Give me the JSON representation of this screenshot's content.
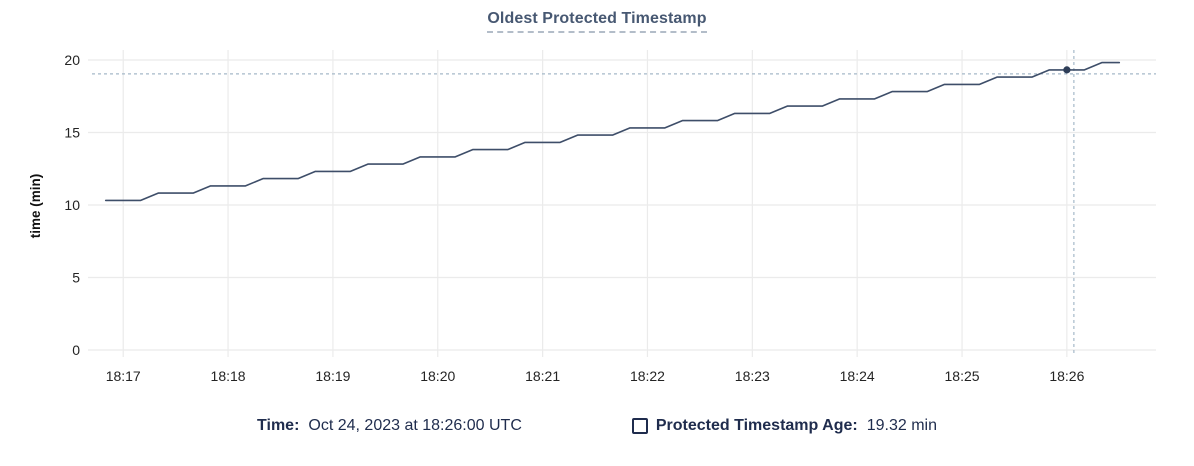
{
  "title": "Oldest Protected Timestamp",
  "colors": {
    "title": "#475872",
    "title_underline": "#b3bdc9",
    "line": "#3e4e69",
    "dot": "#2e3e58",
    "grid": "#ebebeb",
    "crosshair": "#a6b9c9",
    "tick_label": "#242424",
    "axis_label": "#111111",
    "legend_text": "#1f2c4d"
  },
  "chart_data": {
    "type": "line",
    "title": "Oldest Protected Timestamp",
    "xlabel": "",
    "ylabel": "time (min)",
    "ylim": [
      0,
      20
    ],
    "yticks": [
      0,
      5,
      10,
      15,
      20
    ],
    "xticks": [
      "18:17",
      "18:18",
      "18:19",
      "18:20",
      "18:21",
      "18:22",
      "18:23",
      "18:24",
      "18:25",
      "18:26"
    ],
    "x_domain": [
      "18:16:45",
      "18:26:51"
    ],
    "grid": true,
    "legend_position": "bottom",
    "series": [
      {
        "name": "Protected Timestamp Age",
        "unit": "min",
        "points": [
          [
            "18:16:50",
            10.32
          ],
          [
            "18:17:00",
            10.32
          ],
          [
            "18:17:10",
            10.32
          ],
          [
            "18:17:20",
            10.82
          ],
          [
            "18:17:30",
            10.82
          ],
          [
            "18:17:40",
            10.82
          ],
          [
            "18:17:50",
            11.32
          ],
          [
            "18:18:00",
            11.32
          ],
          [
            "18:18:10",
            11.32
          ],
          [
            "18:18:20",
            11.82
          ],
          [
            "18:18:30",
            11.82
          ],
          [
            "18:18:40",
            11.82
          ],
          [
            "18:18:50",
            12.32
          ],
          [
            "18:19:00",
            12.32
          ],
          [
            "18:19:10",
            12.32
          ],
          [
            "18:19:20",
            12.82
          ],
          [
            "18:19:30",
            12.82
          ],
          [
            "18:19:40",
            12.82
          ],
          [
            "18:19:50",
            13.32
          ],
          [
            "18:20:00",
            13.32
          ],
          [
            "18:20:10",
            13.32
          ],
          [
            "18:20:20",
            13.82
          ],
          [
            "18:20:30",
            13.82
          ],
          [
            "18:20:40",
            13.82
          ],
          [
            "18:20:50",
            14.32
          ],
          [
            "18:21:00",
            14.32
          ],
          [
            "18:21:10",
            14.32
          ],
          [
            "18:21:20",
            14.82
          ],
          [
            "18:21:30",
            14.82
          ],
          [
            "18:21:40",
            14.82
          ],
          [
            "18:21:50",
            15.32
          ],
          [
            "18:22:00",
            15.32
          ],
          [
            "18:22:10",
            15.32
          ],
          [
            "18:22:20",
            15.82
          ],
          [
            "18:22:30",
            15.82
          ],
          [
            "18:22:40",
            15.82
          ],
          [
            "18:22:50",
            16.32
          ],
          [
            "18:23:00",
            16.32
          ],
          [
            "18:23:10",
            16.32
          ],
          [
            "18:23:20",
            16.82
          ],
          [
            "18:23:30",
            16.82
          ],
          [
            "18:23:40",
            16.82
          ],
          [
            "18:23:50",
            17.32
          ],
          [
            "18:24:00",
            17.32
          ],
          [
            "18:24:10",
            17.32
          ],
          [
            "18:24:20",
            17.82
          ],
          [
            "18:24:30",
            17.82
          ],
          [
            "18:24:40",
            17.82
          ],
          [
            "18:24:50",
            18.32
          ],
          [
            "18:25:00",
            18.32
          ],
          [
            "18:25:10",
            18.32
          ],
          [
            "18:25:20",
            18.82
          ],
          [
            "18:25:30",
            18.82
          ],
          [
            "18:25:40",
            18.82
          ],
          [
            "18:25:50",
            19.32
          ],
          [
            "18:26:00",
            19.32
          ],
          [
            "18:26:10",
            19.32
          ],
          [
            "18:26:20",
            19.82
          ],
          [
            "18:26:30",
            19.82
          ]
        ]
      }
    ],
    "highlight": {
      "time": "18:26:00",
      "value": 19.32
    }
  },
  "legend": {
    "time_label": "Time:",
    "time_value": "Oct 24, 2023 at 18:26:00 UTC",
    "series_label": "Protected Timestamp Age:",
    "series_value": "19.32 min"
  }
}
